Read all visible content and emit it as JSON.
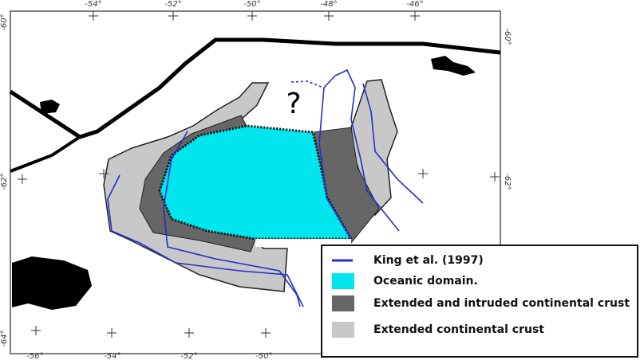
{
  "map": {
    "top_ticks": [
      "-54°",
      "-52°",
      "-50°",
      "-48°",
      "-46°"
    ],
    "bottom_ticks": [
      "-56°",
      "-54°",
      "-52°",
      "-50°"
    ],
    "left_ticks": [
      "-60°",
      "-62°",
      "-64°"
    ],
    "right_ticks": [
      "-60°",
      "-62°"
    ],
    "annotation": "?",
    "legend": [
      "King et al. (1997)",
      "Oceanic domain.",
      "Extended and intruded continental crust",
      "Extended continental crust"
    ]
  }
}
